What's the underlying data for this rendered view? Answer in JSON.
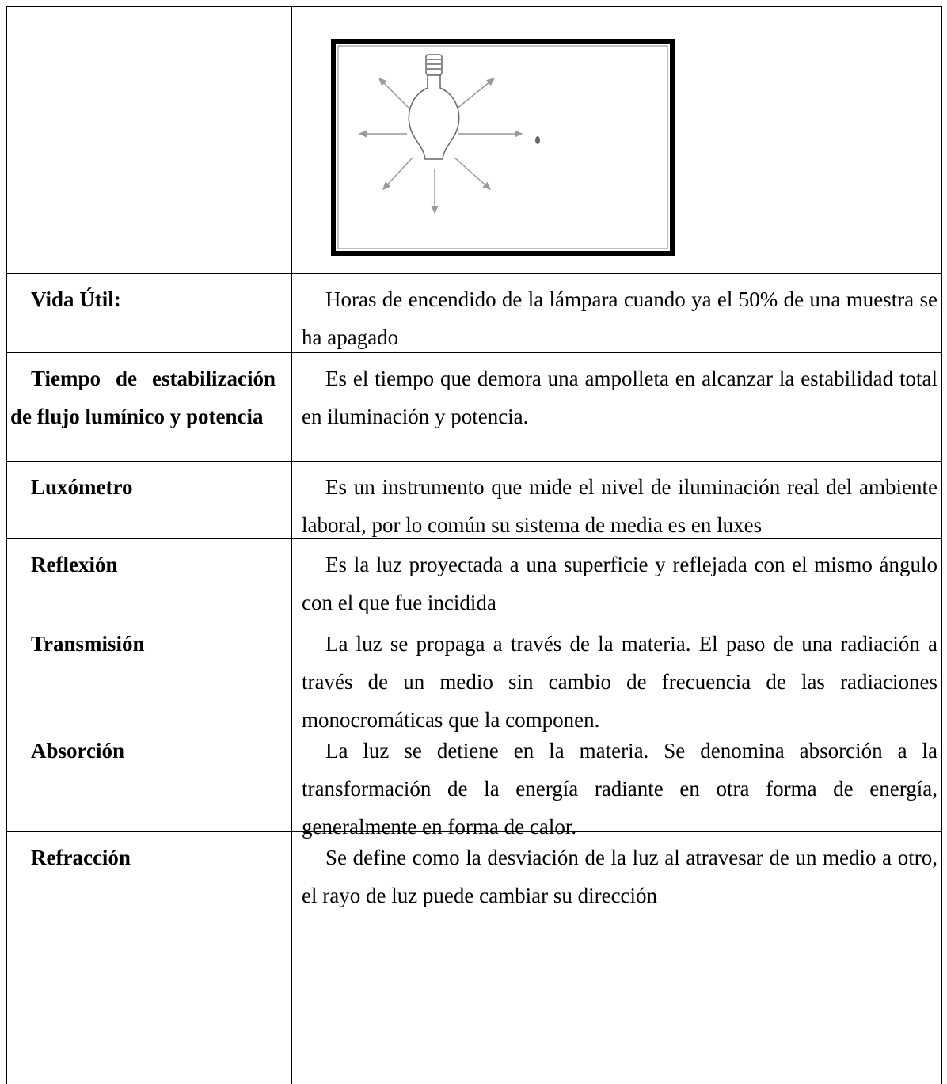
{
  "table": {
    "rows": [
      {
        "term": "Vida Útil:",
        "definition": "Horas de encendido de la lámpara cuando ya el 50% de una muestra se ha apagado"
      },
      {
        "term": "Tiempo de estabilización de flujo lumínico y potencia",
        "definition": "Es el tiempo que demora una ampolleta en alcanzar la estabilidad total en iluminación y potencia."
      },
      {
        "term": "Luxómetro",
        "definition": "Es un instrumento que mide el nivel de iluminación real del ambiente laboral, por lo común su sistema de media es en luxes"
      },
      {
        "term": "Reflexión",
        "definition": "Es la luz proyectada a una superficie y reflejada con el mismo ángulo con el que fue incidida"
      },
      {
        "term": "Transmisión",
        "definition": "La luz se propaga a través de la materia. El paso de una radiación a través de un medio sin cambio de frecuencia de las radiaciones monocromáticas que la componen."
      },
      {
        "term": "Absorción",
        "definition": "La luz se detiene en la materia. Se denomina absorción a la transformación de la energía radiante en otra forma de energía, generalmente en forma de calor."
      },
      {
        "term": "Refracción",
        "definition": "Se define como la desviación de la luz al atravesar de un medio a otro, el rayo de luz puede cambiar su dirección"
      }
    ]
  }
}
